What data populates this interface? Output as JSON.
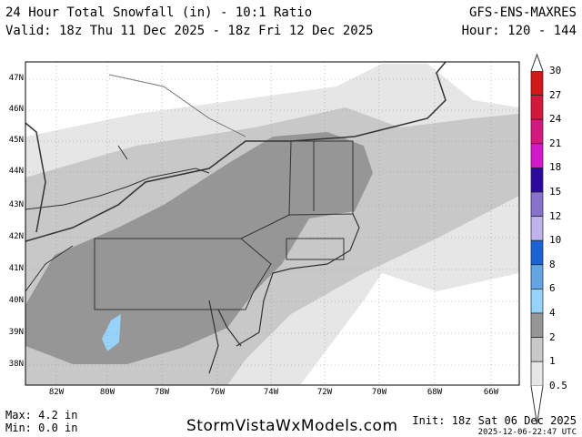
{
  "header": {
    "title": "24 Hour Total Snowfall (in) - 10:1 Ratio",
    "valid": "Valid: 18z Thu 11 Dec 2025 - 18z Fri 12 Dec 2025",
    "model": "GFS-ENS-MAXRES",
    "hour": "Hour: 120 - 144"
  },
  "map": {
    "lat_labels": [
      "47N",
      "46N",
      "45N",
      "44N",
      "43N",
      "42N",
      "41N",
      "40N",
      "39N",
      "38N"
    ],
    "lon_labels": [
      "82W",
      "80W",
      "78W",
      "76W",
      "74W",
      "72W",
      "70W",
      "68W",
      "66W"
    ],
    "shading_colors": {
      "0.5-1": "#e6e6e6",
      "1-2": "#c8c8c8",
      "2-4": "#969696",
      "4-6": "#96d2fa"
    }
  },
  "colorbar": {
    "levels": [
      "30",
      "27",
      "24",
      "21",
      "18",
      "15",
      "12",
      "10",
      "8",
      "6",
      "4",
      "2",
      "1",
      "0.5"
    ],
    "colors": [
      "#d21919",
      "#d2193c",
      "#d2197d",
      "#d219c8",
      "#2d0a9b",
      "#8773cd",
      "#beb4eb",
      "#1964d2",
      "#64a5e6",
      "#96d2fa",
      "#969696",
      "#c8c8c8",
      "#e6e6e6"
    ]
  },
  "footer": {
    "max": "Max: 4.2 in",
    "min": "Min: 0.0 in",
    "brand": "StormVistaWxModels.com",
    "init": "Init: 18z Sat 06 Dec 2025",
    "timestamp": "2025-12-06-22:47 UTC"
  }
}
